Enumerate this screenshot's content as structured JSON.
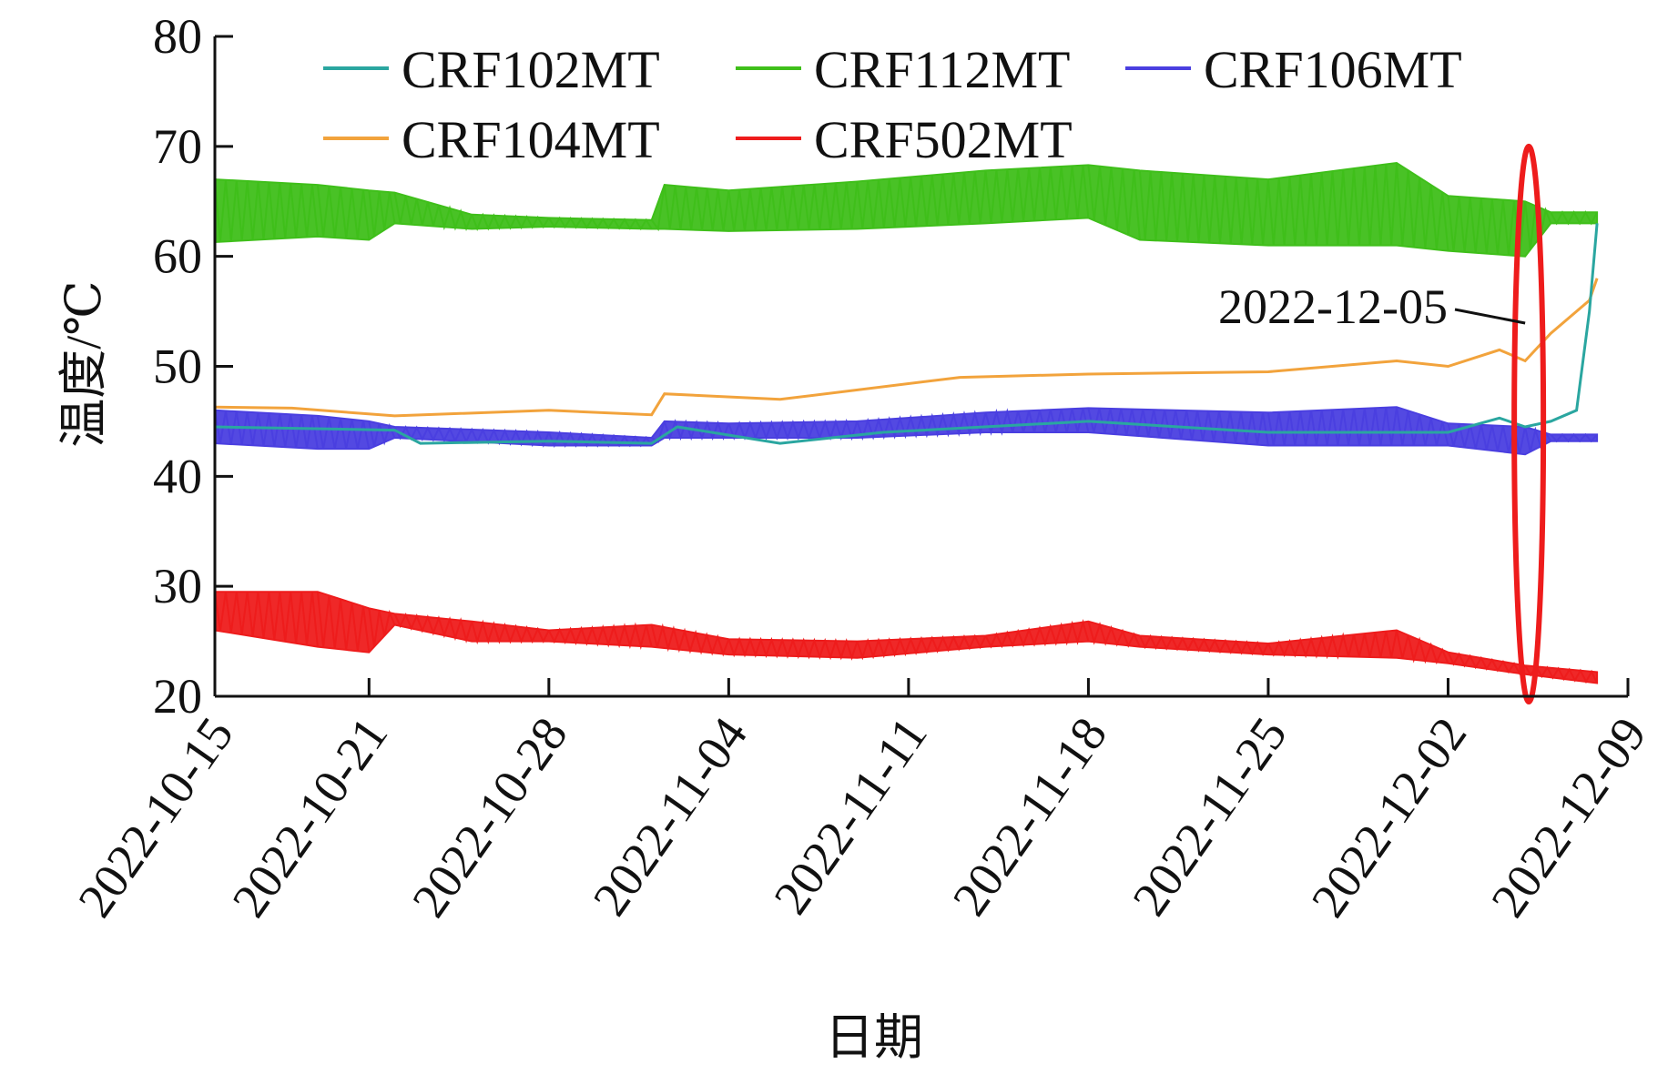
{
  "chart_data": {
    "type": "line",
    "xlabel": "日期",
    "ylabel": "温度/℃",
    "ylim": [
      20,
      80
    ],
    "yticks": [
      20,
      30,
      40,
      50,
      60,
      70,
      80
    ],
    "xlim": [
      "2022-10-15",
      "2022-12-09"
    ],
    "xticks": [
      "2022-10-15",
      "2022-10-21",
      "2022-10-28",
      "2022-11-04",
      "2022-11-11",
      "2022-11-18",
      "2022-11-25",
      "2022-12-02",
      "2022-12-09"
    ],
    "grid": false,
    "legend": "top",
    "series": [
      {
        "name": "CRF102MT",
        "color": "#2aa6a0",
        "band": false,
        "points": [
          [
            "2022-10-15",
            44.5
          ],
          [
            "2022-10-22",
            44.2
          ],
          [
            "2022-10-23",
            43.0
          ],
          [
            "2022-10-28",
            43.2
          ],
          [
            "2022-11-01",
            43.0
          ],
          [
            "2022-11-02",
            44.5
          ],
          [
            "2022-11-06",
            43.0
          ],
          [
            "2022-11-10",
            44.0
          ],
          [
            "2022-11-18",
            45.0
          ],
          [
            "2022-11-25",
            44.0
          ],
          [
            "2022-12-02",
            44.0
          ],
          [
            "2022-12-04",
            45.3
          ],
          [
            "2022-12-05",
            44.5
          ],
          [
            "2022-12-06",
            45.0
          ],
          [
            "2022-12-07",
            46.0
          ],
          [
            "2022-12-07.5",
            55.0
          ],
          [
            "2022-12-07.8",
            63.0
          ]
        ]
      },
      {
        "name": "CRF112MT",
        "color": "#3fbf1a",
        "band": true,
        "points": [
          [
            "2022-10-15",
            61.3,
            67.0
          ],
          [
            "2022-10-19",
            61.8,
            66.5
          ],
          [
            "2022-10-21",
            61.5,
            66.0
          ],
          [
            "2022-10-22",
            63.0,
            65.8
          ],
          [
            "2022-10-25",
            62.5,
            63.8
          ],
          [
            "2022-10-28",
            62.7,
            63.5
          ],
          [
            "2022-11-01",
            62.5,
            63.3
          ],
          [
            "2022-11-01.5",
            62.5,
            66.5
          ],
          [
            "2022-11-04",
            62.3,
            66.0
          ],
          [
            "2022-11-09",
            62.5,
            66.8
          ],
          [
            "2022-11-14",
            63.0,
            67.8
          ],
          [
            "2022-11-18",
            63.5,
            68.3
          ],
          [
            "2022-11-20",
            61.5,
            67.8
          ],
          [
            "2022-11-25",
            61.0,
            67.0
          ],
          [
            "2022-11-30",
            61.0,
            68.5
          ],
          [
            "2022-12-02",
            60.5,
            65.5
          ],
          [
            "2022-12-05",
            60.0,
            65.0
          ],
          [
            "2022-12-06",
            63.0,
            64.0
          ],
          [
            "2022-12-07.8",
            63.0,
            64.0
          ]
        ]
      },
      {
        "name": "CRF106MT",
        "color": "#4a3fe0",
        "band": true,
        "points": [
          [
            "2022-10-15",
            43.0,
            46.0
          ],
          [
            "2022-10-19",
            42.5,
            45.5
          ],
          [
            "2022-10-21",
            42.5,
            45.0
          ],
          [
            "2022-10-22",
            43.5,
            44.5
          ],
          [
            "2022-10-28",
            42.8,
            44.0
          ],
          [
            "2022-11-01",
            42.8,
            43.5
          ],
          [
            "2022-11-01.5",
            43.5,
            45.0
          ],
          [
            "2022-11-04",
            43.5,
            44.8
          ],
          [
            "2022-11-09",
            43.5,
            45.0
          ],
          [
            "2022-11-14",
            44.0,
            45.8
          ],
          [
            "2022-11-18",
            44.0,
            46.2
          ],
          [
            "2022-11-25",
            42.8,
            45.8
          ],
          [
            "2022-11-30",
            42.8,
            46.3
          ],
          [
            "2022-12-02",
            42.8,
            44.8
          ],
          [
            "2022-12-05",
            42.0,
            44.5
          ],
          [
            "2022-12-06",
            43.2,
            43.8
          ],
          [
            "2022-12-07.8",
            43.2,
            43.8
          ]
        ]
      },
      {
        "name": "CRF104MT",
        "color": "#f2a33c",
        "band": false,
        "points": [
          [
            "2022-10-15",
            46.3
          ],
          [
            "2022-10-18",
            46.2
          ],
          [
            "2022-10-22",
            45.5
          ],
          [
            "2022-10-28",
            46.0
          ],
          [
            "2022-11-01",
            45.6
          ],
          [
            "2022-11-01.5",
            47.5
          ],
          [
            "2022-11-06",
            47.0
          ],
          [
            "2022-11-13",
            49.0
          ],
          [
            "2022-11-18",
            49.3
          ],
          [
            "2022-11-25",
            49.5
          ],
          [
            "2022-11-30",
            50.5
          ],
          [
            "2022-12-02",
            50.0
          ],
          [
            "2022-12-04",
            51.5
          ],
          [
            "2022-12-05",
            50.5
          ],
          [
            "2022-12-06",
            53.0
          ],
          [
            "2022-12-07.5",
            56.0
          ],
          [
            "2022-12-07.8",
            58.0
          ]
        ]
      },
      {
        "name": "CRF502MT",
        "color": "#ee1c1c",
        "band": true,
        "points": [
          [
            "2022-10-15",
            26.0,
            29.5
          ],
          [
            "2022-10-19",
            24.5,
            29.5
          ],
          [
            "2022-10-21",
            24.0,
            28.0
          ],
          [
            "2022-10-22",
            26.5,
            27.5
          ],
          [
            "2022-10-25",
            25.0,
            26.8
          ],
          [
            "2022-10-28",
            25.0,
            26.0
          ],
          [
            "2022-11-01",
            24.5,
            26.5
          ],
          [
            "2022-11-04",
            23.8,
            25.2
          ],
          [
            "2022-11-09",
            23.5,
            25.0
          ],
          [
            "2022-11-14",
            24.5,
            25.5
          ],
          [
            "2022-11-18",
            25.0,
            26.8
          ],
          [
            "2022-11-20",
            24.5,
            25.5
          ],
          [
            "2022-11-25",
            23.8,
            24.8
          ],
          [
            "2022-11-30",
            23.5,
            26.0
          ],
          [
            "2022-12-02",
            23.0,
            24.0
          ],
          [
            "2022-12-05",
            22.0,
            22.8
          ],
          [
            "2022-12-07.8",
            21.2,
            22.2
          ]
        ]
      }
    ],
    "annotation": {
      "label": "2022-12-05",
      "date": "2022-12-05",
      "shape": "ellipse",
      "color": "#ee1c1c"
    }
  }
}
